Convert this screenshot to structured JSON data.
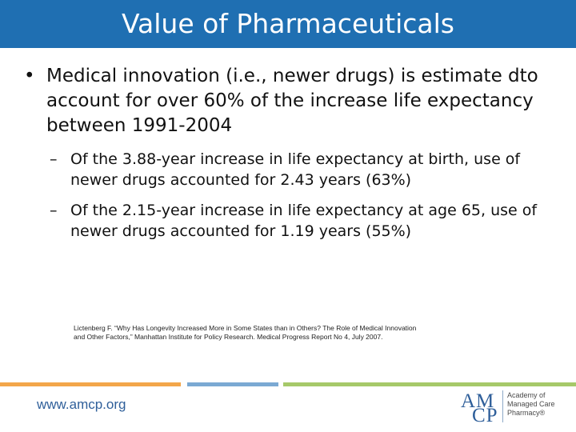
{
  "header": {
    "title": "Value of Pharmaceuticals",
    "background_color": "#1f6fb2"
  },
  "main": {
    "bullet": {
      "mark": "•",
      "text": "Medical innovation (i.e., newer drugs) is estimate dto account for over 60% of the increase life expectancy between 1991-2004"
    },
    "sub_bullets": [
      {
        "mark": "–",
        "text": "Of the 3.88-year increase in life expectancy at birth, use of newer drugs accounted for 2.43 years (63%)"
      },
      {
        "mark": "–",
        "text": "Of the 2.15-year increase in life expectancy at age 65, use of newer drugs accounted for 1.19 years (55%)"
      }
    ],
    "citation": "Lictenberg F. “Why Has Longevity Increased More in Some States than in Others? The Role of Medical Innovation and Other Factors,” Manhattan Institute for Policy Research. Medical Progress Report No 4, July 2007."
  },
  "footer": {
    "url": "www.amcp.org",
    "logo": {
      "letters_top": "AM",
      "letters_bottom": "CP",
      "org_line1": "Academy of",
      "org_line2": "Managed Care",
      "org_line3": "Pharmacy®"
    },
    "stripe_colors": [
      "#f3a64a",
      "#7ba9d3",
      "#a6c96a"
    ]
  }
}
